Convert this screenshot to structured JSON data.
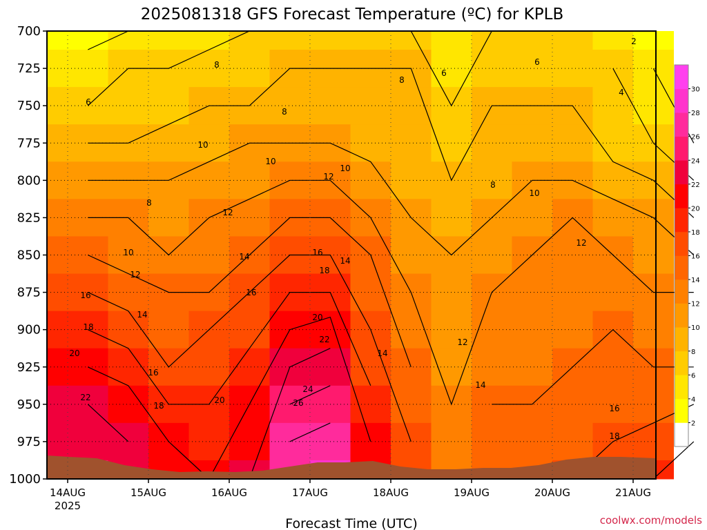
{
  "chart_data": {
    "type": "heatmap",
    "title": "2025081318 GFS Forecast Temperature (ºC) for KPLB",
    "xlabel": "Forecast Time (UTC)",
    "ylabel": "",
    "credit": "coolwx.com/models",
    "x_tick_labels": [
      "14AUG",
      "15AUG",
      "16AUG",
      "17AUG",
      "18AUG",
      "19AUG",
      "20AUG",
      "21AUG"
    ],
    "x_year_label": "2025",
    "y_tick_labels": [
      "700",
      "725",
      "750",
      "775",
      "800",
      "825",
      "850",
      "875",
      "900",
      "925",
      "950",
      "975",
      "1000"
    ],
    "ylim": [
      1000,
      700
    ],
    "x_hours": [
      6,
      18,
      30,
      42,
      54,
      66,
      78,
      90,
      102,
      114,
      126,
      138,
      150,
      162,
      174,
      186
    ],
    "pressure_levels": [
      700,
      725,
      750,
      775,
      800,
      825,
      850,
      875,
      900,
      925,
      950,
      975,
      1000
    ],
    "temperature_c": [
      [
        3,
        4,
        5,
        5,
        6,
        6,
        7,
        7,
        6,
        4,
        6,
        6,
        7,
        5,
        2,
        1
      ],
      [
        5,
        6,
        6,
        7,
        7,
        8,
        8,
        8,
        8,
        5,
        7,
        7,
        7,
        6,
        4,
        2
      ],
      [
        6,
        7,
        7,
        8,
        8,
        9,
        9,
        9,
        8,
        6,
        8,
        8,
        8,
        7,
        5,
        3
      ],
      [
        8,
        8,
        9,
        9,
        10,
        10,
        10,
        9,
        8,
        7,
        8,
        9,
        9,
        7,
        6,
        4
      ],
      [
        10,
        10,
        10,
        11,
        11,
        12,
        12,
        11,
        9,
        8,
        9,
        10,
        10,
        9,
        8,
        6
      ],
      [
        12,
        12,
        11,
        12,
        13,
        14,
        14,
        12,
        10,
        9,
        10,
        11,
        12,
        11,
        10,
        8
      ],
      [
        14,
        13,
        12,
        13,
        14,
        16,
        16,
        14,
        11,
        10,
        11,
        12,
        13,
        12,
        11,
        10
      ],
      [
        16,
        15,
        14,
        14,
        16,
        18,
        18,
        15,
        12,
        11,
        12,
        12,
        13,
        13,
        12,
        12
      ],
      [
        18,
        17,
        15,
        16,
        17,
        20,
        21,
        16,
        13,
        11,
        12,
        12,
        13,
        14,
        13,
        13
      ],
      [
        20,
        19,
        16,
        17,
        19,
        22,
        23,
        17,
        14,
        11,
        13,
        13,
        14,
        14,
        14,
        14
      ],
      [
        22,
        21,
        18,
        18,
        20,
        24,
        25,
        19,
        15,
        12,
        14,
        14,
        14,
        15,
        15,
        16
      ],
      [
        23,
        22,
        20,
        19,
        21,
        26,
        27,
        20,
        16,
        13,
        15,
        15,
        15,
        16,
        17,
        18
      ],
      [
        24,
        22,
        20,
        20,
        22,
        27,
        28,
        21,
        16,
        13,
        15,
        15,
        16,
        16,
        18,
        19
      ]
    ],
    "contour_labels": [
      "2",
      "4",
      "6",
      "8",
      "10",
      "12",
      "14",
      "16",
      "18",
      "20",
      "22",
      "24",
      "26"
    ],
    "color_scale": {
      "ticks": [
        2,
        4,
        6,
        8,
        10,
        12,
        14,
        16,
        18,
        20,
        22,
        24,
        26,
        28,
        30
      ],
      "colors": [
        "#ffffff",
        "#ffff00",
        "#ffe600",
        "#ffcc00",
        "#ffb300",
        "#ff9900",
        "#ff8000",
        "#ff6600",
        "#ff4d00",
        "#ff2600",
        "#ff0000",
        "#f0003c",
        "#ff1a6e",
        "#ff2b9c",
        "#ff33cc",
        "#ff40ee"
      ]
    },
    "ground_color": "#a0522d",
    "grid": true,
    "legend": "right"
  }
}
